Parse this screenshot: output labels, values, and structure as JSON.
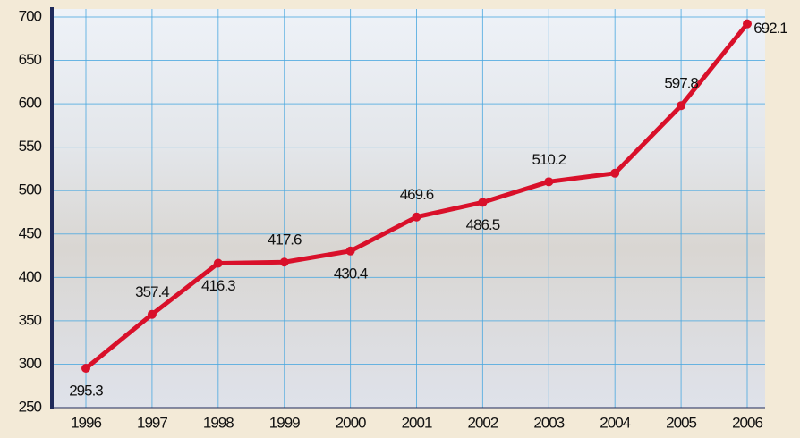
{
  "chart_data": {
    "type": "line",
    "categories": [
      "1996",
      "1997",
      "1998",
      "1999",
      "2000",
      "2001",
      "2002",
      "2003",
      "2004",
      "2005",
      "2006"
    ],
    "values": [
      295.3,
      357.4,
      416.3,
      417.6,
      430.4,
      469.6,
      486.5,
      510.2,
      520,
      597.8,
      692.1
    ],
    "value_labels": [
      "295.3",
      "357.4",
      "416.3",
      "417.6",
      "430.4",
      "469.6",
      "486.5",
      "510.2",
      null,
      "597.8",
      "692.1"
    ],
    "color": "#d9102a",
    "ylim": [
      250,
      700
    ],
    "yticks": [
      250,
      300,
      350,
      400,
      450,
      500,
      550,
      600,
      650,
      700
    ],
    "grid": true
  }
}
